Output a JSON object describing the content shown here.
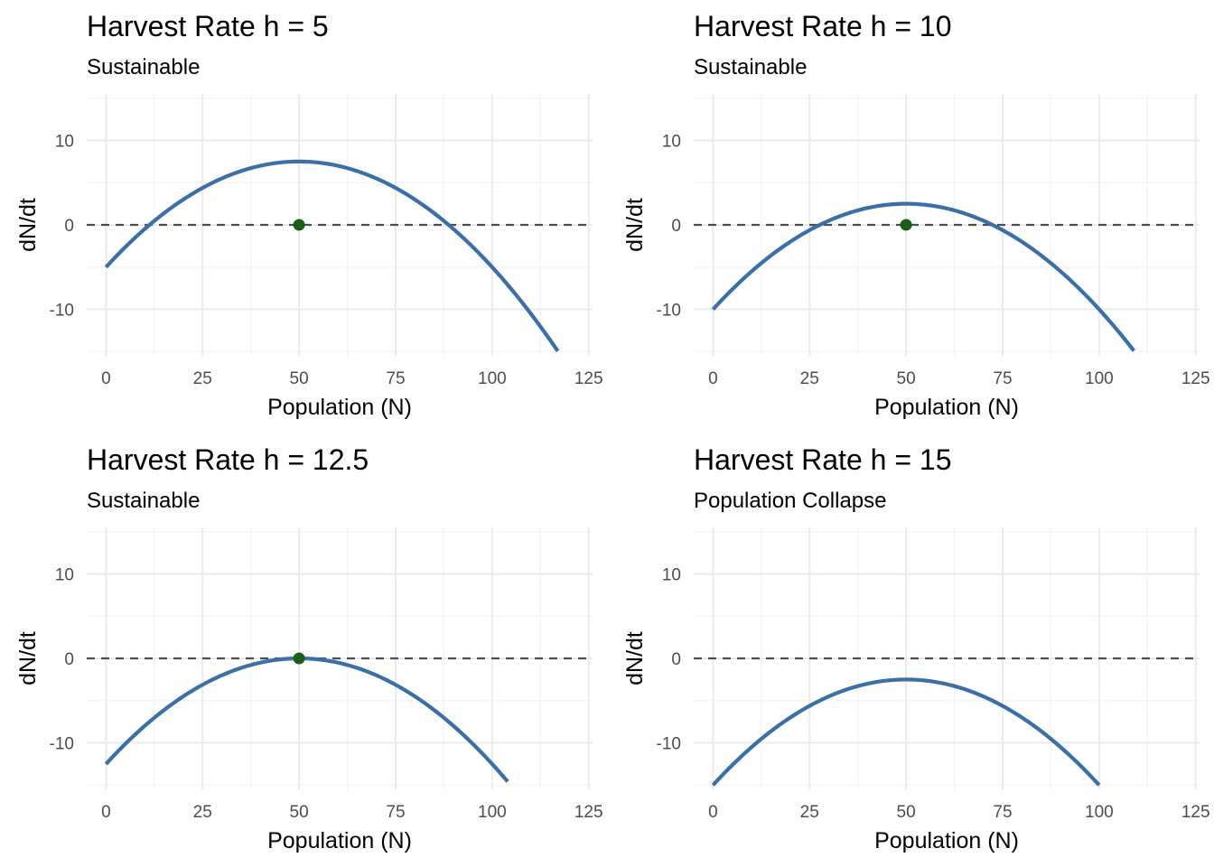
{
  "chart_data": [
    {
      "type": "line",
      "title": "Harvest Rate h = 5",
      "subtitle": "Sustainable",
      "xlabel": "Population (N)",
      "ylabel": "dN/dt",
      "xlim": [
        -5,
        126
      ],
      "ylim": [
        -15.5,
        15.5
      ],
      "xticks": [
        0,
        25,
        50,
        75,
        100,
        125
      ],
      "yticks": [
        -10,
        0,
        10
      ],
      "grid": true,
      "curve": {
        "x_start": 0,
        "x_end": 117,
        "peak_x": 50,
        "peak_y": 7.5,
        "y_at_0": -5
      },
      "reference_line_y": 0,
      "equilibrium_point": {
        "x": 50,
        "y": 0
      }
    },
    {
      "type": "line",
      "title": "Harvest Rate h = 10",
      "subtitle": "Sustainable",
      "xlabel": "Population (N)",
      "ylabel": "dN/dt",
      "xlim": [
        -5,
        126
      ],
      "ylim": [
        -15.5,
        15.5
      ],
      "xticks": [
        0,
        25,
        50,
        75,
        100,
        125
      ],
      "yticks": [
        -10,
        0,
        10
      ],
      "grid": true,
      "curve": {
        "x_start": 0,
        "x_end": 109,
        "peak_x": 50,
        "peak_y": 2.5,
        "y_at_0": -10
      },
      "reference_line_y": 0,
      "equilibrium_point": {
        "x": 50,
        "y": 0
      }
    },
    {
      "type": "line",
      "title": "Harvest Rate h = 12.5",
      "subtitle": "Sustainable",
      "xlabel": "Population (N)",
      "ylabel": "dN/dt",
      "xlim": [
        -5,
        126
      ],
      "ylim": [
        -15.5,
        15.5
      ],
      "xticks": [
        0,
        25,
        50,
        75,
        100,
        125
      ],
      "yticks": [
        -10,
        0,
        10
      ],
      "grid": true,
      "curve": {
        "x_start": 0,
        "x_end": 104,
        "peak_x": 50,
        "peak_y": 0,
        "y_at_0": -12.5
      },
      "reference_line_y": 0,
      "equilibrium_point": {
        "x": 50,
        "y": 0
      }
    },
    {
      "type": "line",
      "title": "Harvest Rate h = 15",
      "subtitle": "Population Collapse",
      "xlabel": "Population (N)",
      "ylabel": "dN/dt",
      "xlim": [
        -5,
        126
      ],
      "ylim": [
        -15.5,
        15.5
      ],
      "xticks": [
        0,
        25,
        50,
        75,
        100,
        125
      ],
      "yticks": [
        -10,
        0,
        10
      ],
      "grid": true,
      "curve": {
        "x_start": 0,
        "x_end": 100,
        "peak_x": 50,
        "peak_y": -2.5,
        "y_at_0": -15
      },
      "reference_line_y": 0,
      "equilibrium_point": null
    }
  ],
  "colors": {
    "curve": "#3a6fa8",
    "point": "#1a5e1a",
    "reference_line": "#4d4d4d"
  }
}
